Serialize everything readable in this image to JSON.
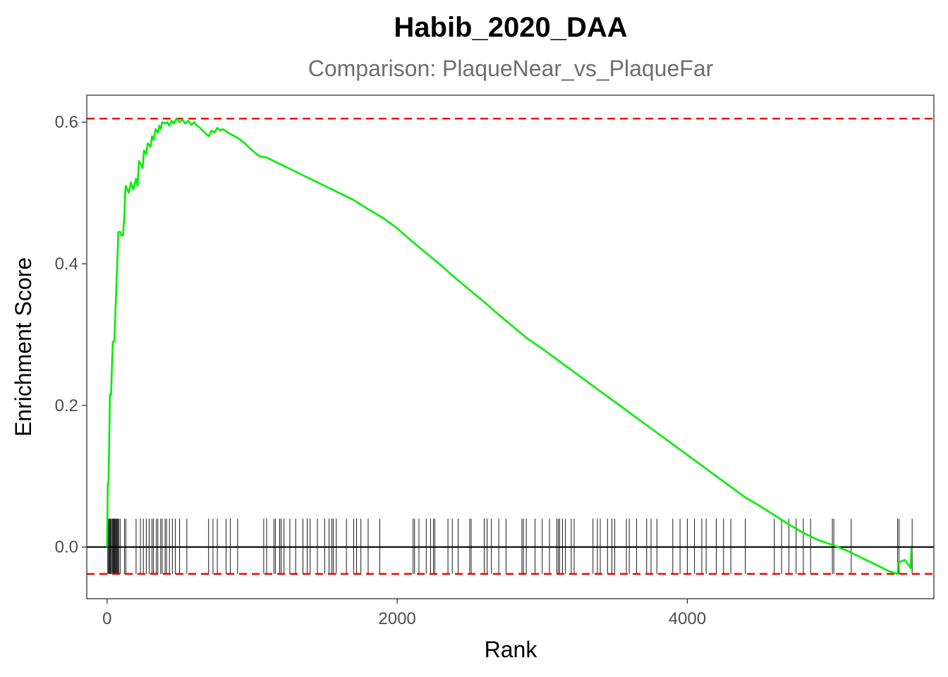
{
  "chart_data": {
    "type": "line",
    "title": "Habib_2020_DAA",
    "subtitle": "Comparison: PlaqueNear_vs_PlaqueFar",
    "xlabel": "Rank",
    "ylabel": "Enrichment Score",
    "xlim": [
      -140,
      5700
    ],
    "ylim": [
      -0.073,
      0.638
    ],
    "x_ticks": [
      0,
      2000,
      4000
    ],
    "x_tick_labels": [
      "0",
      "2000",
      "4000"
    ],
    "y_ticks": [
      0.0,
      0.2,
      0.4,
      0.6
    ],
    "y_tick_labels": [
      "0.0",
      "0.2",
      "0.4",
      "0.6"
    ],
    "grid": false,
    "colors": {
      "curve": "#00ee00",
      "threshold": "#ee0000",
      "zero_line": "#000000",
      "rug": "#000000",
      "frame": "#333333"
    },
    "thresholds": {
      "max_es": 0.605,
      "min_es": -0.038
    },
    "series": [
      {
        "x": [
          0,
          5,
          10,
          15,
          20,
          28,
          35,
          40,
          50,
          60,
          70,
          78,
          85,
          90,
          100,
          110,
          120,
          126,
          130,
          140,
          150,
          165,
          180,
          200,
          210,
          220,
          235,
          245,
          255,
          270,
          280,
          300,
          310,
          320,
          335,
          350,
          360,
          370,
          380,
          400,
          415,
          430,
          445,
          460,
          480,
          500,
          520,
          540,
          560,
          580,
          600,
          620,
          640,
          660,
          680,
          700,
          720,
          740,
          760,
          780,
          800,
          850,
          900,
          950,
          1000,
          1050,
          1100,
          1150,
          1200,
          1250,
          1300,
          1350,
          1400,
          1500,
          1600,
          1700,
          1800,
          1900,
          2000,
          2100,
          2200,
          2300,
          2400,
          2500,
          2600,
          2700,
          2800,
          2900,
          3000,
          3100,
          3200,
          3300,
          3400,
          3500,
          3600,
          3700,
          3800,
          3900,
          4000,
          4100,
          4200,
          4300,
          4400,
          4500,
          4600,
          4700,
          4800,
          4900,
          5000,
          5100,
          5200,
          5300,
          5400,
          5450,
          5455,
          5500,
          5540,
          5545
        ],
        "y": [
          0.0,
          0.09,
          0.09,
          0.155,
          0.215,
          0.215,
          0.265,
          0.29,
          0.29,
          0.345,
          0.4,
          0.445,
          0.445,
          0.445,
          0.44,
          0.44,
          0.47,
          0.505,
          0.51,
          0.505,
          0.5,
          0.515,
          0.505,
          0.52,
          0.51,
          0.545,
          0.54,
          0.535,
          0.56,
          0.555,
          0.57,
          0.565,
          0.58,
          0.575,
          0.59,
          0.585,
          0.595,
          0.59,
          0.6,
          0.598,
          0.6,
          0.595,
          0.602,
          0.598,
          0.605,
          0.6,
          0.604,
          0.598,
          0.602,
          0.596,
          0.6,
          0.595,
          0.592,
          0.588,
          0.584,
          0.58,
          0.588,
          0.585,
          0.592,
          0.588,
          0.59,
          0.583,
          0.578,
          0.57,
          0.56,
          0.552,
          0.55,
          0.545,
          0.54,
          0.535,
          0.53,
          0.525,
          0.52,
          0.51,
          0.5,
          0.49,
          0.477,
          0.465,
          0.45,
          0.432,
          0.415,
          0.398,
          0.38,
          0.363,
          0.346,
          0.328,
          0.311,
          0.294,
          0.28,
          0.265,
          0.25,
          0.235,
          0.22,
          0.205,
          0.19,
          0.175,
          0.16,
          0.145,
          0.13,
          0.115,
          0.1,
          0.085,
          0.07,
          0.058,
          0.045,
          0.032,
          0.02,
          0.01,
          0.003,
          -0.005,
          -0.015,
          -0.025,
          -0.035,
          -0.038,
          -0.022,
          -0.018,
          -0.03,
          -0.001
        ]
      }
    ],
    "rug_positions": [
      5,
      10,
      12,
      18,
      22,
      28,
      35,
      40,
      45,
      50,
      55,
      60,
      65,
      70,
      75,
      80,
      90,
      120,
      130,
      200,
      230,
      250,
      270,
      290,
      310,
      320,
      340,
      350,
      370,
      380,
      400,
      410,
      430,
      450,
      470,
      500,
      550,
      700,
      730,
      760,
      820,
      850,
      900,
      1080,
      1100,
      1150,
      1160,
      1190,
      1200,
      1220,
      1260,
      1300,
      1350,
      1380,
      1400,
      1450,
      1500,
      1530,
      1550,
      1560,
      1580,
      1650,
      1700,
      1720,
      1750,
      1800,
      1880,
      2110,
      2120,
      2150,
      2200,
      2230,
      2250,
      2260,
      2350,
      2380,
      2420,
      2500,
      2510,
      2600,
      2620,
      2650,
      2700,
      2750,
      2860,
      2870,
      2890,
      2950,
      3000,
      3050,
      3100,
      3110,
      3120,
      3140,
      3160,
      3200,
      3220,
      3350,
      3380,
      3400,
      3450,
      3480,
      3500,
      3580,
      3600,
      3650,
      3720,
      3750,
      3790,
      3900,
      3950,
      4000,
      4050,
      4100,
      4130,
      4200,
      4250,
      4300,
      4400,
      4600,
      4650,
      4700,
      4750,
      4800,
      4850,
      5000,
      5010,
      5130,
      5450,
      5460,
      5550
    ]
  }
}
